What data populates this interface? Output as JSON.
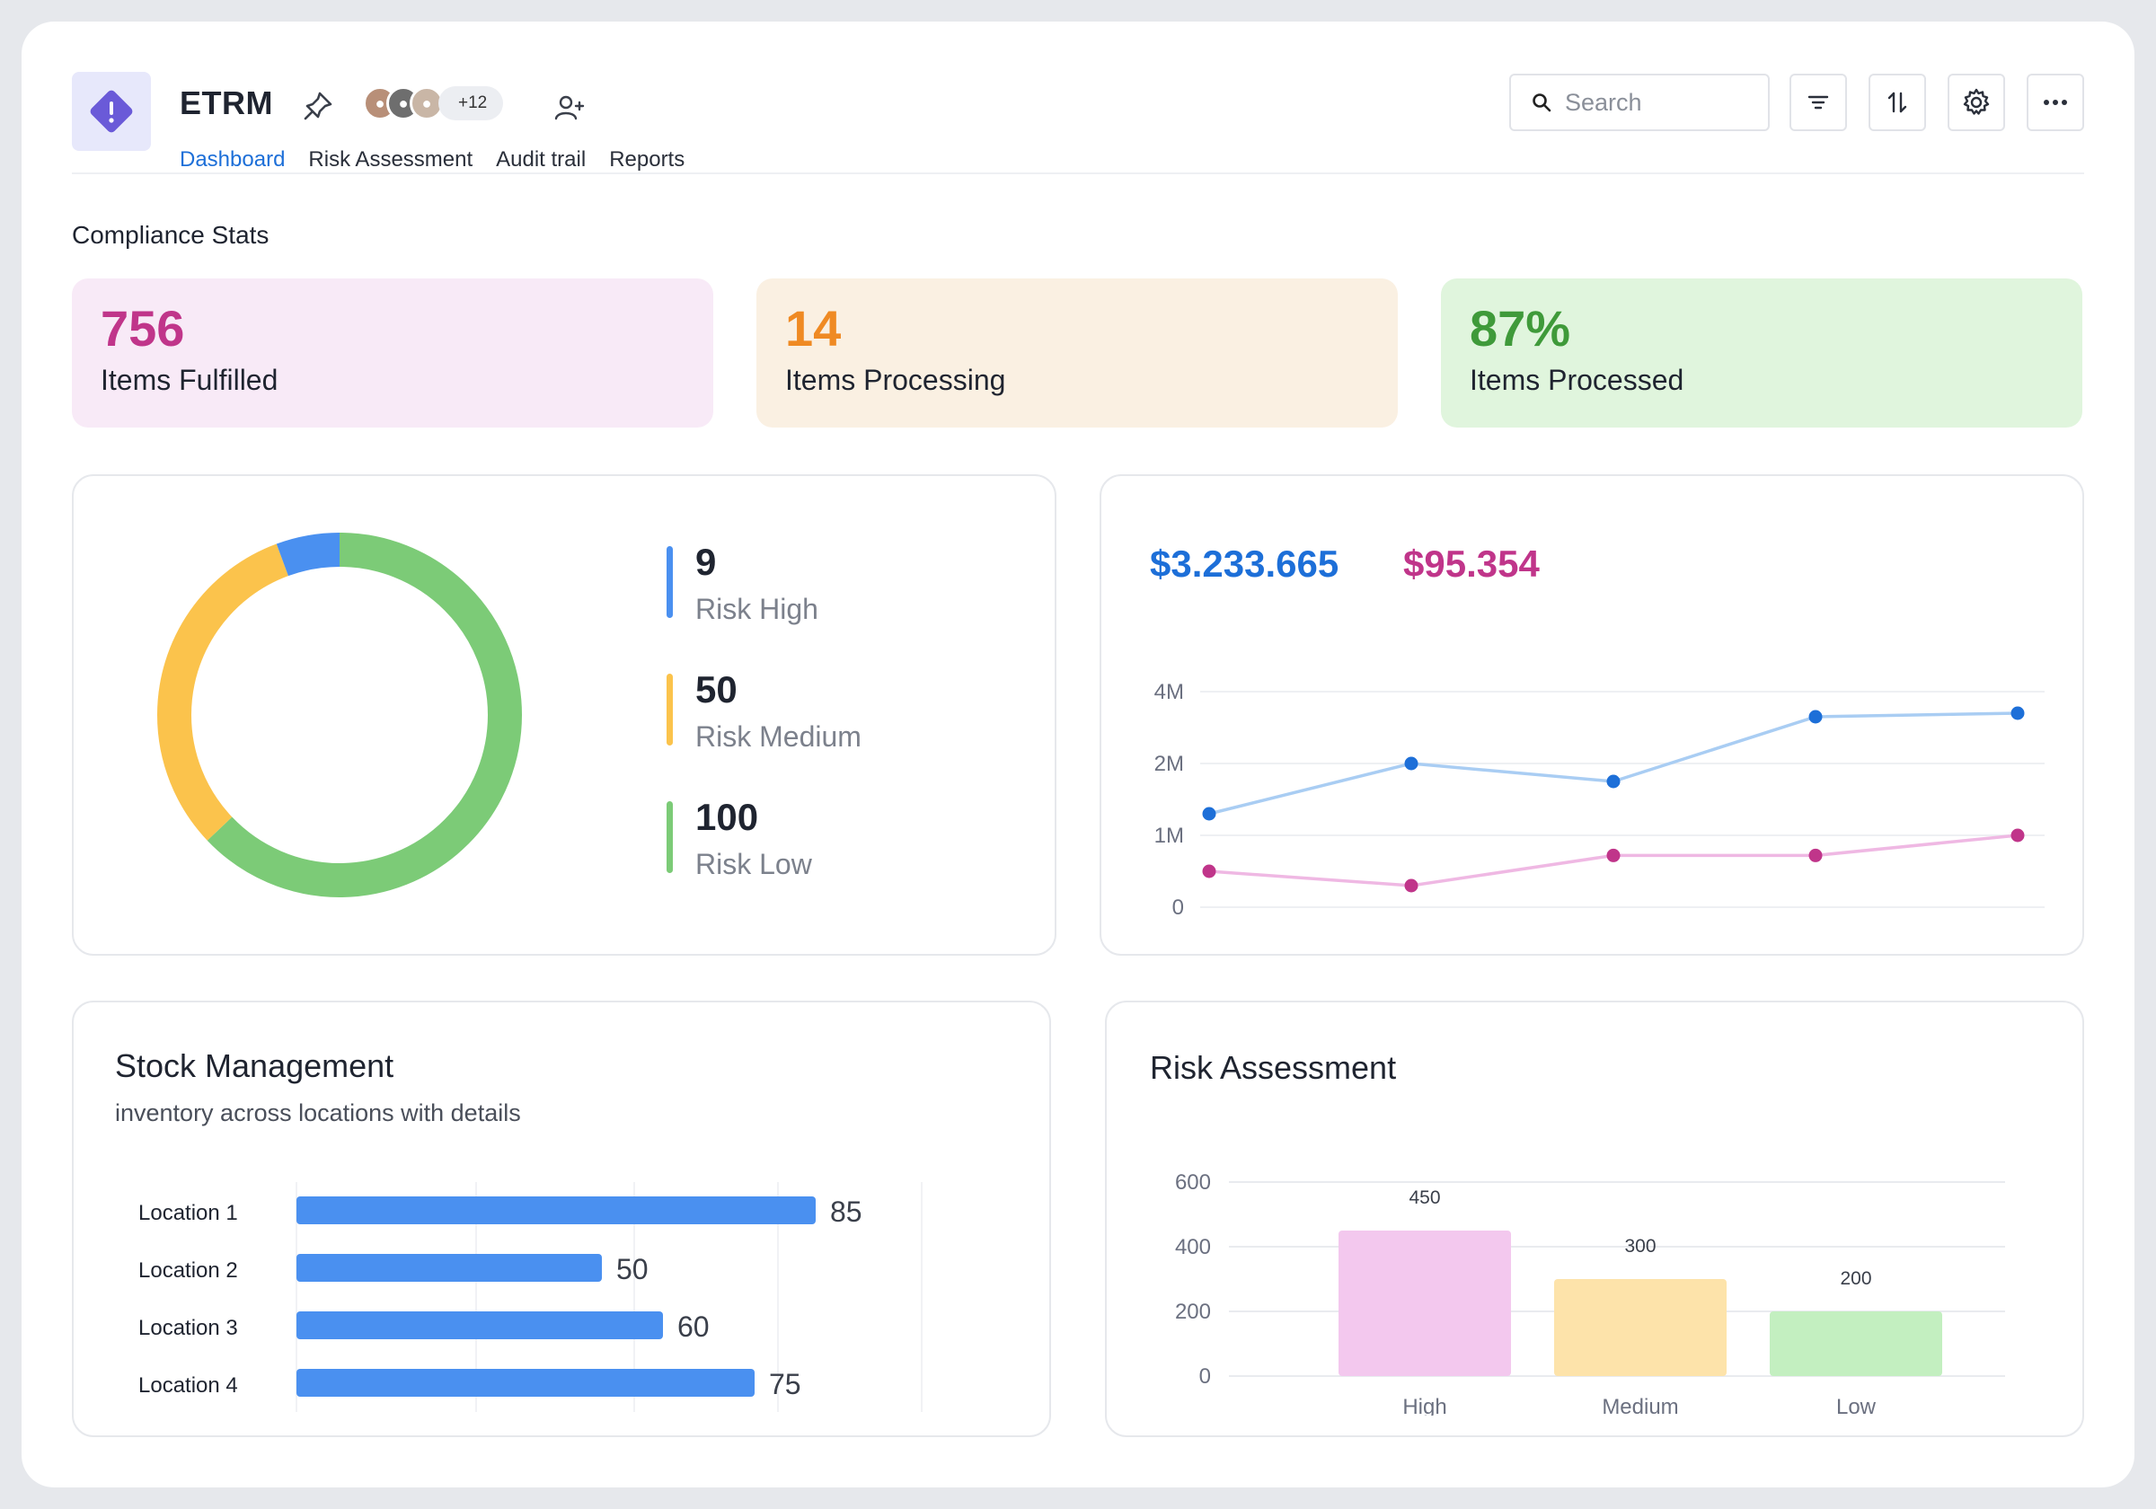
{
  "app": {
    "title": "ETRM",
    "avatar_extra": "+12",
    "accent": "#6a5ad8"
  },
  "tabs": [
    {
      "label": "Dashboard",
      "active": true
    },
    {
      "label": "Risk Assessment",
      "active": false
    },
    {
      "label": "Audit trail",
      "active": false
    },
    {
      "label": "Reports",
      "active": false
    }
  ],
  "search": {
    "placeholder": "Search"
  },
  "toolbar": {
    "icons": [
      "filter-icon",
      "sort-icon",
      "settings-icon",
      "more-icon"
    ]
  },
  "section_title": "Compliance Stats",
  "stats": [
    {
      "value": "756",
      "label": "Items Fulfilled",
      "color": "#c0358a",
      "bg": "#f8eaf7"
    },
    {
      "value": "14",
      "label": "Items Processing",
      "color": "#ef8a23",
      "bg": "#faf0e2"
    },
    {
      "value": "87%",
      "label": "Items Processed",
      "color": "#3f9a3a",
      "bg": "#e0f5dd"
    }
  ],
  "risk_summary": {
    "items": [
      {
        "value": "9",
        "label": "Risk High",
        "color": "#4a90f0"
      },
      {
        "value": "50",
        "label": "Risk Medium",
        "color": "#fbc34c"
      },
      {
        "value": "100",
        "label": "Risk Low",
        "color": "#7ccb77"
      }
    ]
  },
  "trend": {
    "value_a": "$3.233.665",
    "value_b": "$95.354",
    "color_a": "#1d6fd8",
    "color_b": "#c0358a"
  },
  "stock": {
    "title": "Stock Management",
    "subtitle": "inventory across locations with details"
  },
  "risk_card": {
    "title": "Risk Assessment"
  },
  "chart_data": [
    {
      "type": "pie",
      "categories": [
        "Risk High",
        "Risk Medium",
        "Risk Low"
      ],
      "values": [
        9,
        50,
        100
      ],
      "colors": [
        "#4a90f0",
        "#fbc34c",
        "#7ccb77"
      ]
    },
    {
      "type": "line",
      "x": [
        1,
        2,
        3,
        4,
        5
      ],
      "yticks": [
        "0",
        "1M",
        "2M",
        "4M"
      ],
      "series": [
        {
          "values": [
            1.3,
            2.0,
            1.75,
            3.3,
            3.4
          ],
          "color": "#1d6fd8"
        },
        {
          "values": [
            0.5,
            0.3,
            0.72,
            0.72,
            1.0
          ],
          "color": "#c0358a"
        }
      ]
    },
    {
      "type": "bar",
      "orientation": "horizontal",
      "categories": [
        "Location 1",
        "Location 2",
        "Location 3",
        "Location 4"
      ],
      "values": [
        85,
        50,
        60,
        75
      ],
      "value_labels": [
        "85",
        "50",
        "60",
        "75"
      ],
      "xlim": [
        0,
        120
      ],
      "color": "#4a90f0"
    },
    {
      "type": "bar",
      "categories": [
        "High",
        "Medium",
        "Low"
      ],
      "values": [
        450,
        300,
        200
      ],
      "value_labels": [
        "450",
        "300",
        "200"
      ],
      "yticks": [
        "0",
        "200",
        "400",
        "600"
      ],
      "ylim": [
        0,
        600
      ],
      "colors": [
        "#f3c8ee",
        "#fde3aa",
        "#c3efc0"
      ]
    }
  ]
}
